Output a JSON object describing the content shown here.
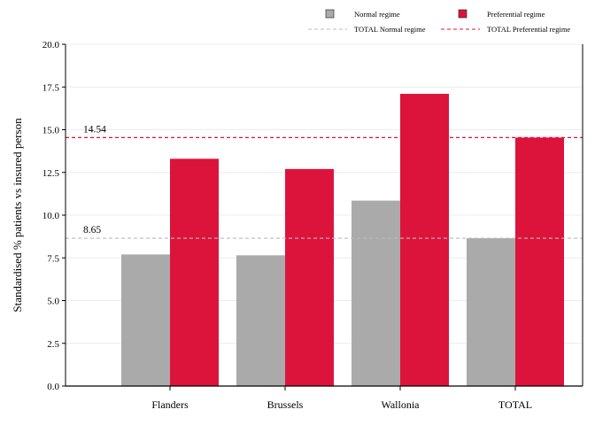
{
  "chart_data": {
    "type": "bar",
    "categories": [
      "Flanders",
      "Brussels",
      "Wallonia",
      "TOTAL"
    ],
    "series": [
      {
        "name": "Normal regime",
        "values": [
          7.7,
          7.65,
          10.85,
          8.65
        ],
        "color": "#aaaaaa"
      },
      {
        "name": "Preferential regime",
        "values": [
          13.3,
          12.7,
          17.1,
          14.54
        ],
        "color": "#dc143c"
      }
    ],
    "reference_lines": [
      {
        "name": "TOTAL Normal regime",
        "value": 8.65,
        "label": "8.65",
        "color": "#bbbbbb"
      },
      {
        "name": "TOTAL Preferential regime",
        "value": 14.54,
        "label": "14.54",
        "color": "#dc143c"
      }
    ],
    "ylabel": "Standardised % patients vs insured person",
    "ylim": [
      0,
      20
    ],
    "yticks": [
      "0.0",
      "2.5",
      "5.0",
      "7.5",
      "10.0",
      "12.5",
      "15.0",
      "17.5",
      "20.0"
    ],
    "grid": true,
    "legend_position": "top"
  }
}
